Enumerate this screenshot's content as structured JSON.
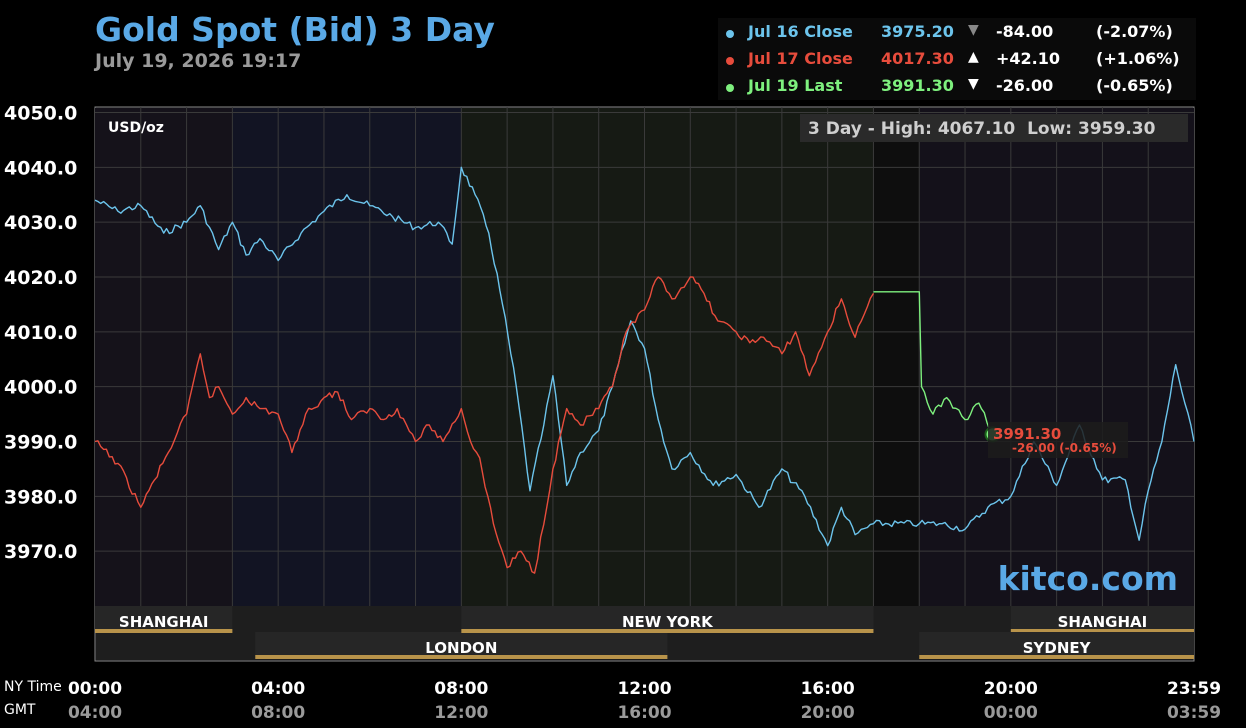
{
  "header": {
    "title": "Gold Spot (Bid) 3 Day",
    "subtitle": "July 19, 2026 19:17"
  },
  "legend": [
    {
      "name": "Jul 16 Close",
      "value": "3975.20",
      "arrow": "▼",
      "change": "-84.00",
      "pct": "(-2.07%)",
      "color": "#6cc4ec",
      "arrow_color": "#888888"
    },
    {
      "name": "Jul 17 Close",
      "value": "4017.30",
      "arrow": "▲",
      "change": "+42.10",
      "pct": "(+1.06%)",
      "color": "#e74c3c",
      "arrow_color": "#ffffff"
    },
    {
      "name": "Jul 19 Last",
      "value": "3991.30",
      "arrow": "▼",
      "change": "-26.00",
      "pct": "(-0.65%)",
      "color": "#7ef07e",
      "arrow_color": "#ffffff"
    }
  ],
  "range_box": {
    "text": "3 Day - High: 4067.10  Low: 3959.30"
  },
  "unit_label": "USD/oz",
  "watermark": "kitco.com",
  "last_marker": {
    "price": "3991.30",
    "change": "-26.00 (-0.65%)"
  },
  "row_labels": {
    "ny": "NY Time",
    "gmt": "GMT"
  },
  "sessions": [
    {
      "name": "SHANGHAI",
      "start": 0,
      "end": 3,
      "row": 1
    },
    {
      "name": "LONDON",
      "start": 3.5,
      "end": 12.5,
      "row": 2
    },
    {
      "name": "NEW YORK",
      "start": 8,
      "end": 17,
      "row": 1
    },
    {
      "name": "SHANGHAI",
      "start": 20,
      "end": 24,
      "row": 1
    },
    {
      "name": "SYDNEY",
      "start": 18,
      "end": 24,
      "row": 2
    }
  ],
  "chart_data": {
    "type": "line",
    "ylim": [
      3960,
      4051
    ],
    "xlim": [
      0,
      24
    ],
    "yticks": [
      4050.0,
      4040.0,
      4030.0,
      4020.0,
      4010.0,
      4000.0,
      3990.0,
      3980.0,
      3970.0
    ],
    "ytick_labels": [
      "4050.0",
      "4040.0",
      "4030.0",
      "4020.0",
      "4010.0",
      "4000.0",
      "3990.0",
      "3980.0",
      "3970.0"
    ],
    "x_ticks": [
      {
        "h": 0,
        "ny": "00:00",
        "gmt": "04:00"
      },
      {
        "h": 4,
        "ny": "04:00",
        "gmt": "08:00"
      },
      {
        "h": 8,
        "ny": "08:00",
        "gmt": "12:00"
      },
      {
        "h": 12,
        "ny": "12:00",
        "gmt": "16:00"
      },
      {
        "h": 16,
        "ny": "16:00",
        "gmt": "20:00"
      },
      {
        "h": 20,
        "ny": "20:00",
        "gmt": "00:00"
      },
      {
        "h": 24,
        "ny": "23:59",
        "gmt": "03:59"
      }
    ],
    "series": [
      {
        "name": "Jul 16 Close",
        "color": "#6cc4ec",
        "x": [
          0,
          0.5,
          1,
          1.5,
          2,
          2.3,
          2.7,
          3,
          3.3,
          3.6,
          4,
          4.5,
          5,
          5.5,
          6,
          6.5,
          7,
          7.5,
          7.8,
          8,
          8.3,
          8.6,
          8.9,
          9.2,
          9.5,
          9.8,
          10,
          10.3,
          10.6,
          11,
          11.3,
          11.7,
          12,
          12.3,
          12.6,
          13,
          13.5,
          14,
          14.5,
          15,
          15.5,
          16,
          16.3,
          16.6,
          17,
          18,
          18.5,
          19,
          19.5,
          20,
          20.5,
          21,
          21.5,
          22,
          22.5,
          22.8,
          23,
          23.3,
          23.6,
          24
        ],
        "y": [
          4034,
          4032,
          4033,
          4028,
          4030,
          4033,
          4025,
          4030,
          4024,
          4027,
          4023,
          4028,
          4032,
          4035,
          4033,
          4031,
          4029,
          4030,
          4026,
          4040,
          4035,
          4028,
          4015,
          4000,
          3981,
          3993,
          4002,
          3982,
          3988,
          3992,
          4000,
          4012,
          4007,
          3994,
          3985,
          3988,
          3982,
          3984,
          3978,
          3985,
          3980,
          3971,
          3978,
          3973,
          3975,
          3975,
          3975,
          3974,
          3978,
          3980,
          3990,
          3982,
          3993,
          3983,
          3983,
          3972,
          3981,
          3990,
          4004,
          3990
        ]
      },
      {
        "name": "Jul 17 Close",
        "color": "#e74c3c",
        "x": [
          0,
          0.5,
          1,
          1.3,
          1.6,
          2,
          2.3,
          2.5,
          2.7,
          3,
          3.3,
          3.6,
          4,
          4.3,
          4.6,
          5,
          5.3,
          5.6,
          6,
          6.3,
          6.6,
          7,
          7.3,
          7.6,
          8,
          8.2,
          8.4,
          8.7,
          9,
          9.3,
          9.6,
          10,
          10.3,
          10.6,
          11,
          11.3,
          11.6,
          12,
          12.3,
          12.6,
          13,
          13.3,
          13.6,
          14,
          14.3,
          14.6,
          15,
          15.3,
          15.6,
          16,
          16.3,
          16.6,
          17
        ],
        "y": [
          3990,
          3986,
          3978,
          3983,
          3988,
          3995,
          4006,
          3998,
          4000,
          3995,
          3998,
          3996,
          3995,
          3988,
          3995,
          3998,
          3999,
          3994,
          3996,
          3994,
          3996,
          3990,
          3993,
          3990,
          3996,
          3990,
          3987,
          3975,
          3967,
          3970,
          3966,
          3985,
          3996,
          3993,
          3996,
          4000,
          4010,
          4014,
          4020,
          4016,
          4020,
          4017,
          4012,
          4010,
          4008,
          4009,
          4006,
          4010,
          4002,
          4010,
          4016,
          4009,
          4017
        ]
      },
      {
        "name": "Jul 19 Last",
        "color": "#7ef07e",
        "x": [
          17,
          18,
          18.05,
          18.3,
          18.6,
          19,
          19.3,
          19.6
        ],
        "y": [
          4017.3,
          4017.3,
          4000,
          3995,
          3998,
          3994,
          3997,
          3991.3
        ]
      }
    ]
  }
}
